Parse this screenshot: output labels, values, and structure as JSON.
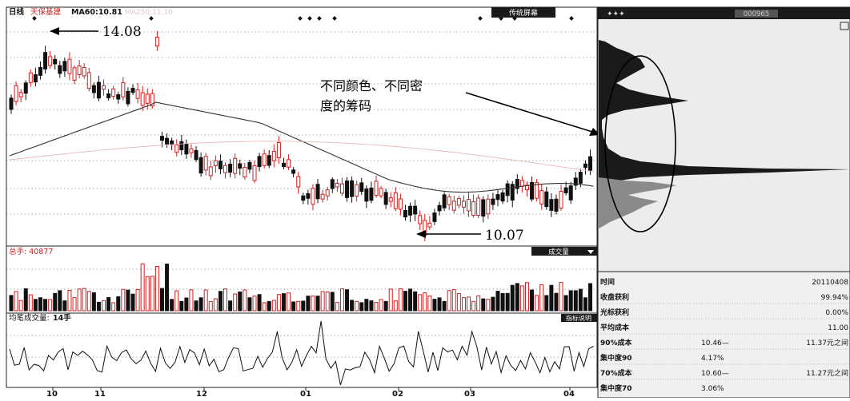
{
  "header": {
    "period": "日线",
    "stock": "天保基建",
    "ma_label": "MA60:10.81",
    "ma_faded": "MA250:11.10",
    "top_button": "传统屏幕",
    "chip_code": "000965"
  },
  "annotations": {
    "high": "14.08",
    "low": "10.07",
    "chips_line1": "不同颜色、不同密",
    "chips_line2": "度的筹码"
  },
  "volume": {
    "label": "总手: 40877",
    "button": "成交量"
  },
  "indicator": {
    "label_prefix": "均笔成交量:",
    "label_value": "14手",
    "button": "指标说明"
  },
  "x_axis": [
    "10",
    "11",
    "12",
    "01",
    "02",
    "03",
    "04"
  ],
  "chip_panel": {
    "rows": [
      {
        "label": "时间",
        "mid": "",
        "value": "20110408"
      },
      {
        "label": "收盘获利",
        "mid": "",
        "value": "99.94%"
      },
      {
        "label": "光标获利",
        "mid": "",
        "value": "0.00%"
      },
      {
        "label": "平均成本",
        "mid": "",
        "value": "11.00"
      },
      {
        "label": "90%成本",
        "mid": "10.46—",
        "value": "11.37元之间"
      },
      {
        "label": "集中度90",
        "mid": "4.17%",
        "value": ""
      },
      {
        "label": "70%成本",
        "mid": "10.60—",
        "value": "11.27元之间"
      },
      {
        "label": "集中度70",
        "mid": "3.06%",
        "value": ""
      }
    ]
  },
  "colors": {
    "up": "#d22020",
    "down": "#111111",
    "ma": "#333333",
    "chip_bg": "#ececec"
  }
}
